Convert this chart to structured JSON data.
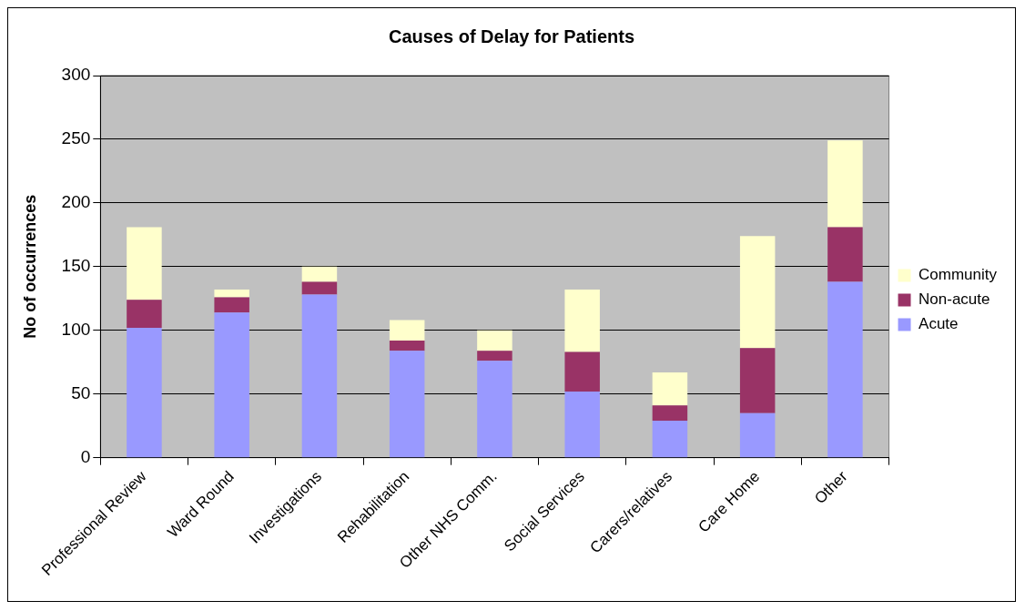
{
  "chart_data": {
    "type": "bar",
    "title": "Causes of Delay for Patients",
    "ylabel": "No of occurrences",
    "categories": [
      "Professional Review",
      "Ward Round",
      "Investigations",
      "Rehabilitation",
      "Other NHS Comm.",
      "Social Services",
      "Carers/relatives",
      "Care Home",
      "Other"
    ],
    "series": [
      {
        "name": "Acute",
        "color": "#9999ff",
        "values": [
          102,
          114,
          128,
          84,
          76,
          52,
          29,
          35,
          138
        ]
      },
      {
        "name": "Non-acute",
        "color": "#993366",
        "values": [
          22,
          12,
          10,
          8,
          8,
          31,
          12,
          51,
          43
        ]
      },
      {
        "name": "Community",
        "color": "#ffffcc",
        "values": [
          57,
          6,
          12,
          16,
          16,
          49,
          26,
          88,
          68
        ]
      }
    ],
    "stacked": true,
    "ylim": [
      0,
      300
    ],
    "yticks": [
      0,
      50,
      100,
      150,
      200,
      250,
      300
    ],
    "grid": "y",
    "legend": "right"
  }
}
